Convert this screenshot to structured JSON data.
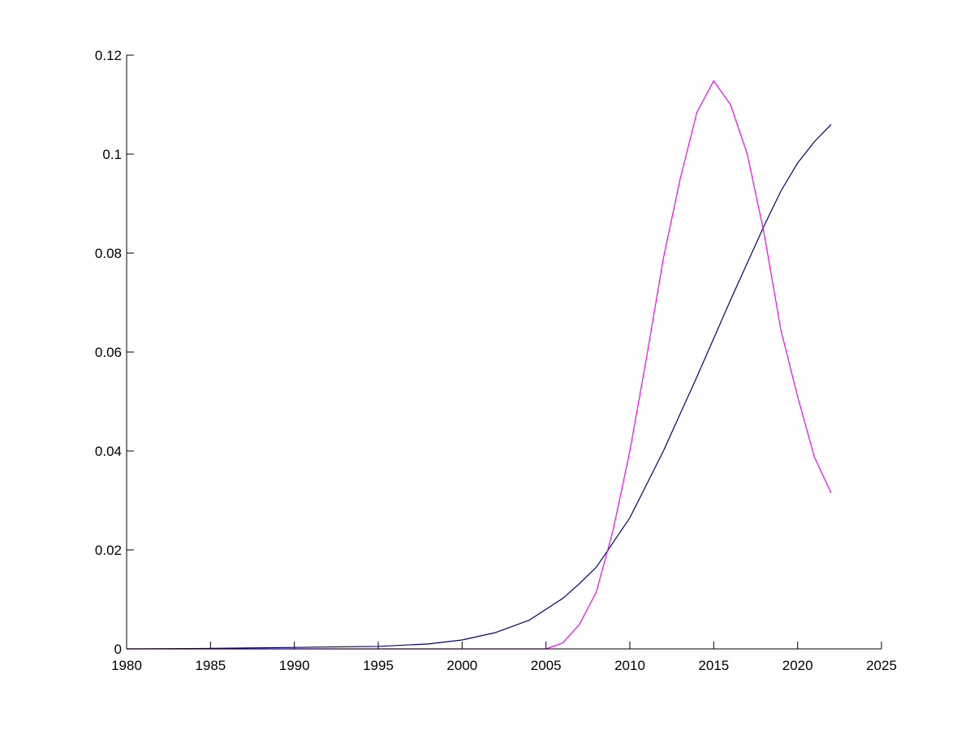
{
  "chart_data": {
    "type": "line",
    "title": "",
    "xlabel": "",
    "ylabel": "",
    "xlim": [
      1980,
      2025
    ],
    "ylim": [
      0,
      0.12
    ],
    "grid": false,
    "legend": "none",
    "x_ticks": [
      1980,
      1985,
      1990,
      1995,
      2000,
      2005,
      2010,
      2015,
      2020,
      2025
    ],
    "x_tick_labels": [
      "1980",
      "1985",
      "1990",
      "1995",
      "2000",
      "2005",
      "2010",
      "2015",
      "2020",
      "2025"
    ],
    "y_ticks": [
      0,
      0.02,
      0.04,
      0.06,
      0.08,
      0.1,
      0.12
    ],
    "y_tick_labels": [
      "0",
      "0.02",
      "0.04",
      "0.06",
      "0.08",
      "0.1",
      "0.12"
    ],
    "series": [
      {
        "color": "#000080",
        "x": [
          1980,
          1985,
          1990,
          1995,
          1998,
          2000,
          2002,
          2004,
          2006,
          2007,
          2008,
          2010,
          2012,
          2014,
          2016,
          2018,
          2019,
          2020,
          2021,
          2022
        ],
        "y": [
          0.0,
          0.0001,
          0.0003,
          0.0005,
          0.001,
          0.0018,
          0.0033,
          0.0058,
          0.0102,
          0.0132,
          0.0165,
          0.0265,
          0.04,
          0.055,
          0.0705,
          0.0855,
          0.0925,
          0.0982,
          0.1025,
          0.106
        ]
      },
      {
        "color": "#ff00ff",
        "x": [
          1980,
          2000,
          2005,
          2006,
          2007,
          2008,
          2009,
          2010,
          2011,
          2012,
          2013,
          2014,
          2015,
          2016,
          2017,
          2018,
          2019,
          2020,
          2021,
          2022
        ],
        "y": [
          0,
          0,
          0,
          0.0012,
          0.005,
          0.0115,
          0.024,
          0.04,
          0.059,
          0.079,
          0.095,
          0.1085,
          0.1148,
          0.11,
          0.1,
          0.084,
          0.0645,
          0.051,
          0.0388,
          0.0315
        ]
      }
    ]
  }
}
